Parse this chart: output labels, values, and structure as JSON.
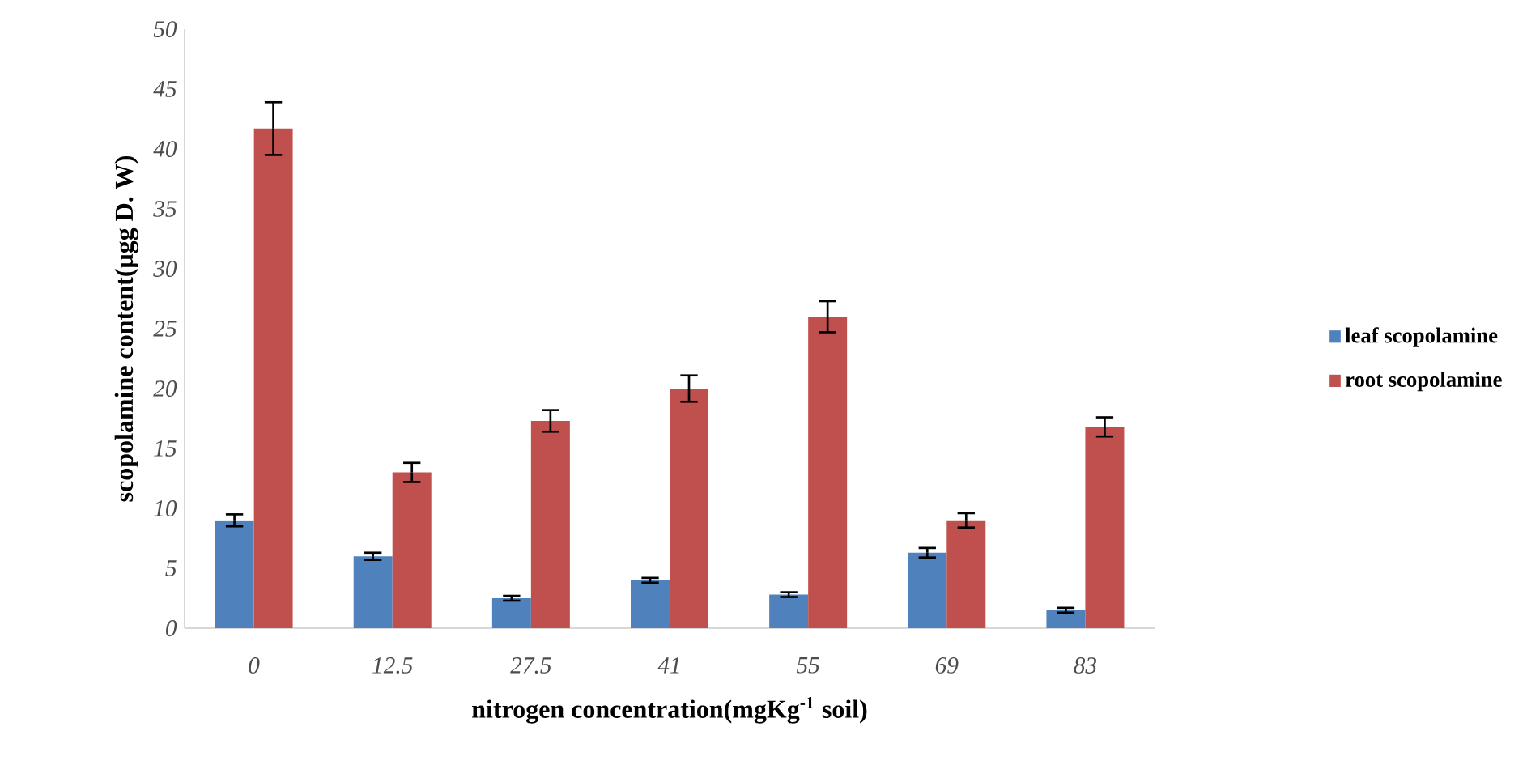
{
  "chart_data": {
    "type": "bar",
    "xlabel": "nitrogen concentration(mgKg$^{-1}$ soil)",
    "ylabel": "scopolamine content(μgg D. W)",
    "categories": [
      "0",
      "12.5",
      "27.5",
      "41",
      "55",
      "69",
      "83"
    ],
    "series": [
      {
        "name": "leaf scopolamine",
        "color": "#4f81bd",
        "values": [
          9,
          6,
          2.5,
          4,
          2.8,
          6.3,
          1.5
        ],
        "errors": [
          0.5,
          0.3,
          0.2,
          0.2,
          0.2,
          0.4,
          0.2
        ]
      },
      {
        "name": "root scopolamine",
        "color": "#c0504d",
        "values": [
          41.7,
          13,
          17.3,
          20,
          26,
          9,
          16.8
        ],
        "errors": [
          2.2,
          0.8,
          0.9,
          1.1,
          1.3,
          0.6,
          0.8
        ]
      }
    ],
    "ylim": [
      0,
      50
    ],
    "yticks": [
      0,
      5,
      10,
      15,
      20,
      25,
      30,
      35,
      40,
      45,
      50
    ],
    "grid": false,
    "legend": "right"
  }
}
